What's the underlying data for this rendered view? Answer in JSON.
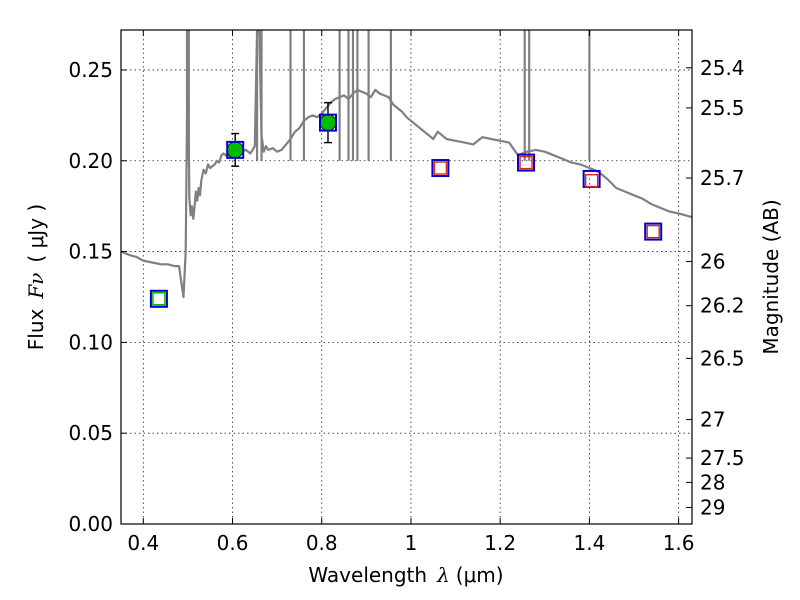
{
  "chart_data": {
    "type": "scatter",
    "xlabel_prefix": "Wavelength",
    "xlabel_symbol": "λ",
    "xlabel_unit": "(μm)",
    "ylabel_prefix": "Flux",
    "ylabel_symbol": "Fν",
    "ylabel_unit": "( μJy )",
    "y2label": "Magnitude (AB)",
    "xlim": [
      0.35,
      1.63
    ],
    "ylim": [
      0.0,
      0.272
    ],
    "grid": true,
    "x_ticks": [
      0.4,
      0.6,
      0.8,
      1.0,
      1.2,
      1.4,
      1.6
    ],
    "x_tick_labels": [
      "0.4",
      "0.6",
      "0.8",
      "1",
      "1.2",
      "1.4",
      "1.6"
    ],
    "y_ticks": [
      0.0,
      0.05,
      0.1,
      0.15,
      0.2,
      0.25
    ],
    "y_tick_labels": [
      "0.00",
      "0.05",
      "0.10",
      "0.15",
      "0.20",
      "0.25"
    ],
    "magnitude_ticks": [
      {
        "label": "25.4",
        "flux": 0.2512
      },
      {
        "label": "25.5",
        "flux": 0.2291
      },
      {
        "label": "25.7",
        "flux": 0.1905
      },
      {
        "label": "26",
        "flux": 0.1445
      },
      {
        "label": "26.2",
        "flux": 0.1202
      },
      {
        "label": "26.5",
        "flux": 0.0912
      },
      {
        "label": "27",
        "flux": 0.0575
      },
      {
        "label": "27.5",
        "flux": 0.0363
      },
      {
        "label": "28",
        "flux": 0.0229
      },
      {
        "label": "29",
        "flux": 0.0091
      }
    ],
    "series": [
      {
        "name": "model SED",
        "kind": "line",
        "color": "#808080",
        "x": [
          0.35,
          0.37,
          0.385,
          0.4,
          0.42,
          0.44,
          0.455,
          0.47,
          0.48,
          0.49,
          0.495,
          0.5,
          0.503,
          0.506,
          0.509,
          0.512,
          0.515,
          0.518,
          0.521,
          0.524,
          0.527,
          0.53,
          0.535,
          0.54,
          0.545,
          0.55,
          0.56,
          0.565,
          0.57,
          0.575,
          0.58,
          0.59,
          0.6,
          0.61,
          0.62,
          0.63,
          0.64,
          0.65,
          0.655,
          0.66,
          0.665,
          0.67,
          0.675,
          0.68,
          0.69,
          0.7,
          0.71,
          0.72,
          0.73,
          0.74,
          0.75,
          0.76,
          0.77,
          0.78,
          0.79,
          0.8,
          0.81,
          0.82,
          0.83,
          0.84,
          0.85,
          0.86,
          0.87,
          0.88,
          0.89,
          0.9,
          0.91,
          0.92,
          0.93,
          0.94,
          0.95,
          0.96,
          0.97,
          0.98,
          0.99,
          1.0,
          1.02,
          1.04,
          1.05,
          1.06,
          1.08,
          1.1,
          1.12,
          1.14,
          1.16,
          1.18,
          1.2,
          1.22,
          1.24,
          1.26,
          1.28,
          1.3,
          1.32,
          1.34,
          1.36,
          1.38,
          1.4,
          1.42,
          1.44,
          1.46,
          1.48,
          1.5,
          1.52,
          1.54,
          1.56,
          1.58,
          1.6,
          1.63
        ],
        "y": [
          0.15,
          0.148,
          0.147,
          0.145,
          0.144,
          0.143,
          0.143,
          0.142,
          0.142,
          0.125,
          0.15,
          0.272,
          0.18,
          0.17,
          0.175,
          0.168,
          0.175,
          0.183,
          0.178,
          0.185,
          0.181,
          0.189,
          0.195,
          0.193,
          0.198,
          0.196,
          0.198,
          0.2,
          0.199,
          0.203,
          0.204,
          0.202,
          0.205,
          0.207,
          0.205,
          0.206,
          0.204,
          0.208,
          0.272,
          0.272,
          0.214,
          0.205,
          0.208,
          0.206,
          0.207,
          0.205,
          0.206,
          0.209,
          0.212,
          0.216,
          0.218,
          0.222,
          0.224,
          0.225,
          0.224,
          0.226,
          0.229,
          0.232,
          0.234,
          0.235,
          0.236,
          0.234,
          0.237,
          0.239,
          0.238,
          0.237,
          0.235,
          0.239,
          0.237,
          0.236,
          0.235,
          0.231,
          0.229,
          0.227,
          0.224,
          0.222,
          0.218,
          0.214,
          0.212,
          0.216,
          0.212,
          0.211,
          0.21,
          0.209,
          0.213,
          0.212,
          0.211,
          0.21,
          0.203,
          0.205,
          0.206,
          0.205,
          0.203,
          0.201,
          0.199,
          0.198,
          0.196,
          0.194,
          0.19,
          0.185,
          0.183,
          0.181,
          0.179,
          0.176,
          0.174,
          0.172,
          0.171,
          0.169
        ]
      },
      {
        "name": "spikes",
        "kind": "spikes",
        "color": "#808080",
        "x": [
          0.498,
          0.502,
          0.655,
          0.665,
          0.73,
          0.76,
          0.84,
          0.86,
          0.87,
          0.88,
          0.905,
          0.955,
          1.255,
          1.265,
          1.4
        ],
        "top": [
          0.272,
          0.272,
          0.272,
          0.272,
          0.272,
          0.272,
          0.272,
          0.272,
          0.272,
          0.272,
          0.272,
          0.272,
          0.272,
          0.272,
          0.272
        ]
      },
      {
        "name": "green detections",
        "kind": "points",
        "marker": "circle",
        "color": "#00bb00",
        "x": [
          0.606,
          0.814
        ],
        "y": [
          0.206,
          0.221
        ],
        "yerr": [
          0.009,
          0.011
        ]
      },
      {
        "name": "blue model boxes",
        "kind": "points",
        "marker": "square",
        "color": "#0000cc",
        "x": [
          0.435,
          0.606,
          0.814,
          1.066,
          1.258,
          1.405,
          1.543
        ],
        "y": [
          0.124,
          0.206,
          0.221,
          0.196,
          0.199,
          0.19,
          0.161
        ]
      },
      {
        "name": "red upper-limit boxes",
        "kind": "points",
        "marker": "square",
        "color": "#dd2222",
        "x": [
          1.066,
          1.258,
          1.405,
          1.543
        ],
        "y": [
          0.196,
          0.199,
          0.189,
          0.161
        ]
      },
      {
        "name": "green box",
        "kind": "points",
        "marker": "square",
        "color": "#00aa00",
        "x": [
          0.435
        ],
        "y": [
          0.124
        ]
      }
    ]
  }
}
